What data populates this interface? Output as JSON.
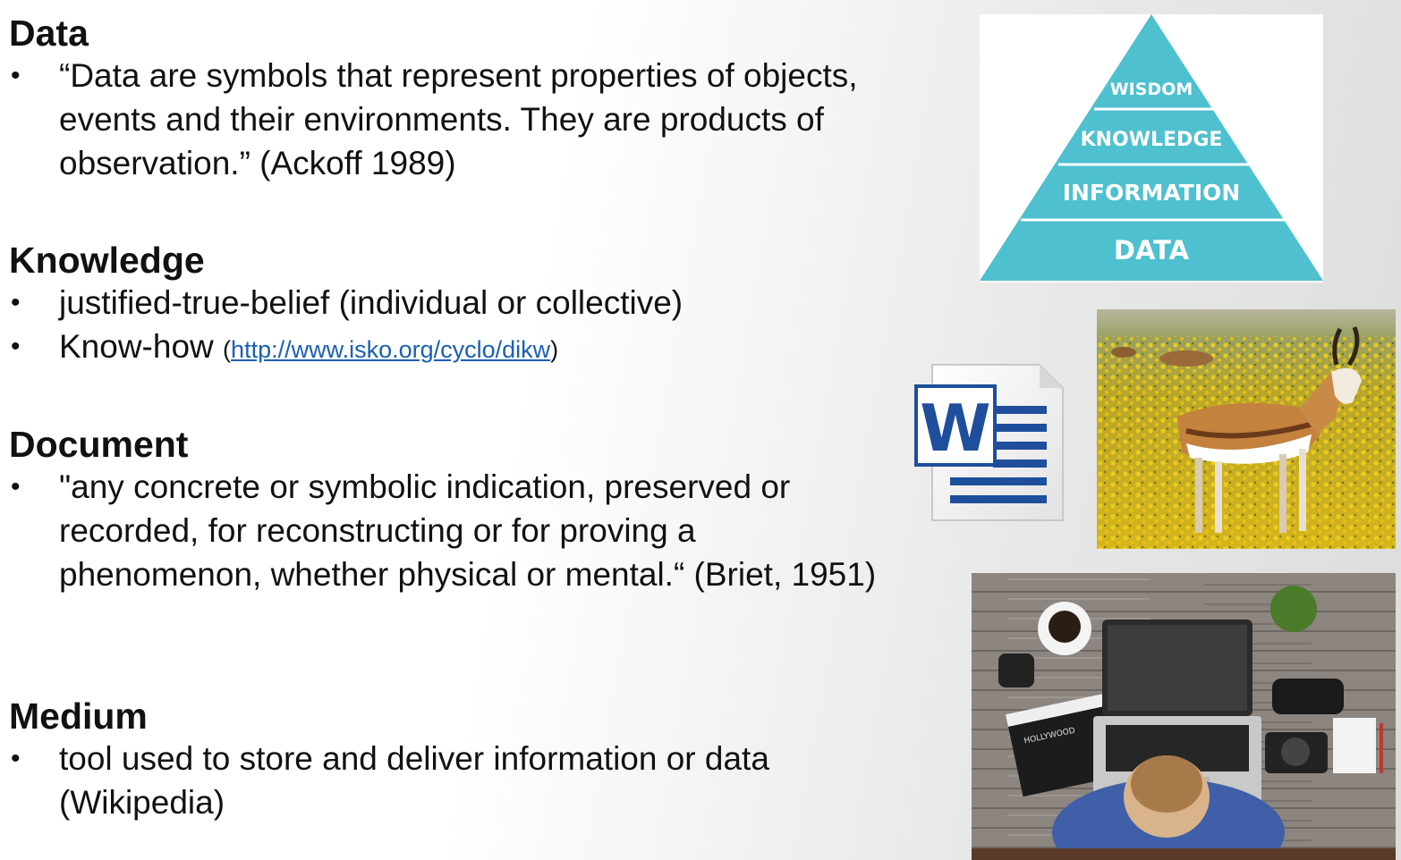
{
  "sections": [
    {
      "heading": "Data",
      "items": [
        {
          "text": "“Data are symbols that represent properties of objects, events and their environments. They are products of observation.” (Ackoff 1989)"
        }
      ]
    },
    {
      "heading": "Knowledge",
      "items": [
        {
          "text": "justified-true-belief (individual or collective)"
        },
        {
          "text": "Know-how",
          "link_open": "(",
          "link": "http://www.isko.org/cyclo/dikw",
          "link_close": ")"
        }
      ]
    },
    {
      "heading": "Document",
      "items": [
        {
          "text": "\"any concrete or symbolic indication, preserved or recorded, for reconstructing or for proving a phenomenon, whether physical or mental.“ (Briet, 1951)"
        }
      ]
    },
    {
      "heading": "Medium",
      "items": [
        {
          "text": "tool used to store and deliver information or data (Wikipedia)"
        }
      ]
    }
  ],
  "bullet": "•",
  "pyramid": {
    "levels": [
      "WISDOM",
      "KNOWLEDGE",
      "INFORMATION",
      "DATA"
    ],
    "color": "#4ec0cf"
  },
  "word_icon": {
    "letter": "W",
    "color": "#1f4e9c"
  },
  "clapper_text": "HOLLYWOOD"
}
